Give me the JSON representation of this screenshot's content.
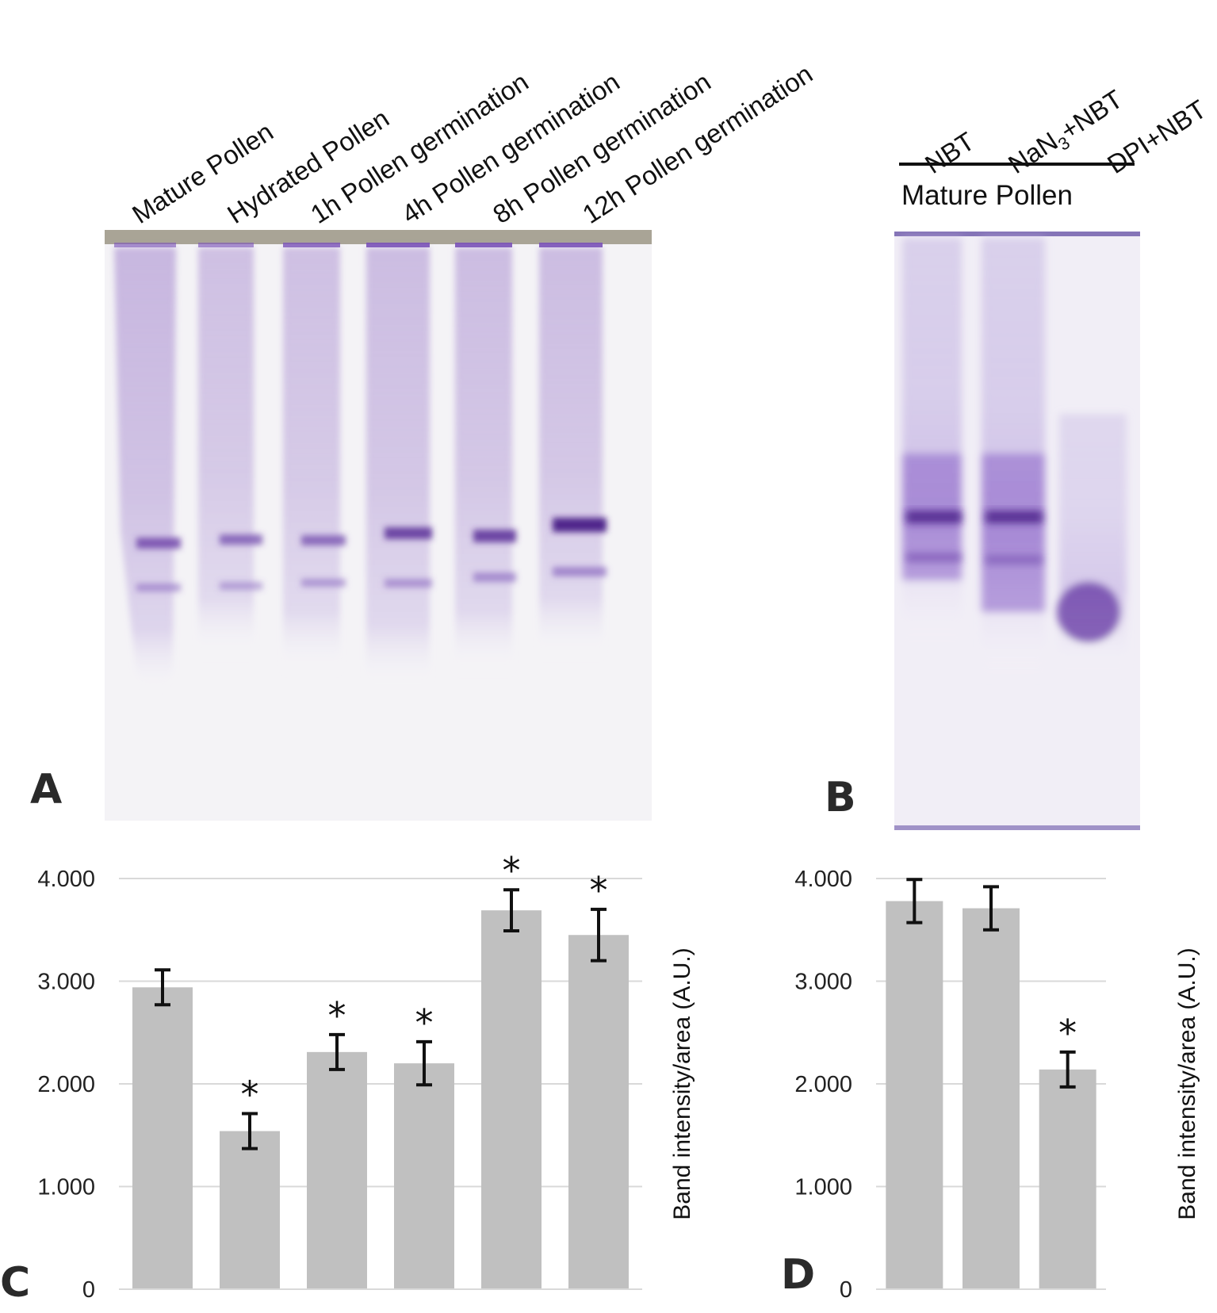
{
  "panels": {
    "a": {
      "letter": "A"
    },
    "b": {
      "letter": "B",
      "treatment_label": "Mature Pollen"
    },
    "c": {
      "letter": "C"
    },
    "d": {
      "letter": "D"
    }
  },
  "gel_a": {
    "lanes": [
      "Mature Pollen",
      "Hydrated Pollen",
      "1h Pollen germination",
      "4h Pollen germination",
      "8h Pollen germination",
      "12h Pollen germination"
    ]
  },
  "gel_b": {
    "lanes": [
      {
        "prefix": "NBT",
        "sub": "",
        "suffix": ""
      },
      {
        "prefix": "NaN",
        "sub": "3",
        "suffix": "+NBT"
      },
      {
        "prefix": "DPI+NBT",
        "sub": "",
        "suffix": ""
      }
    ]
  },
  "colors": {
    "bar": "#c0c0c0",
    "grid": "#d9d9d9",
    "stain": "#6a3fa8"
  },
  "chart_data": [
    {
      "panel": "C",
      "type": "bar",
      "categories": [
        "Mature Pollen",
        "Hydrated Pollen",
        "1h Pollen germination",
        "4h Pollen germination",
        "8h Pollen germination",
        "12h Pollen germination"
      ],
      "values": [
        2.94,
        1.54,
        2.31,
        2.2,
        3.69,
        3.45
      ],
      "errors": [
        0.17,
        0.17,
        0.17,
        0.21,
        0.2,
        0.25
      ],
      "significant": [
        false,
        true,
        true,
        true,
        true,
        true
      ],
      "significance_marker": "*",
      "ylabel": "Band intensity/area (A.U.)",
      "ylim": [
        0,
        4
      ],
      "yticks": [
        "0",
        "1.000",
        "2.000",
        "3.000",
        "4.000"
      ],
      "grid": true
    },
    {
      "panel": "D",
      "type": "bar",
      "categories": [
        "NBT",
        "NaN3+NBT",
        "DPI+NBT"
      ],
      "values": [
        3.78,
        3.71,
        2.14
      ],
      "errors": [
        0.21,
        0.21,
        0.17
      ],
      "significant": [
        false,
        false,
        true
      ],
      "significance_marker": "*",
      "ylabel": "Band intensity/area (A.U.)",
      "ylim": [
        0,
        4
      ],
      "yticks": [
        "0",
        "1.000",
        "2.000",
        "3.000",
        "4.000"
      ],
      "grid": true
    }
  ]
}
